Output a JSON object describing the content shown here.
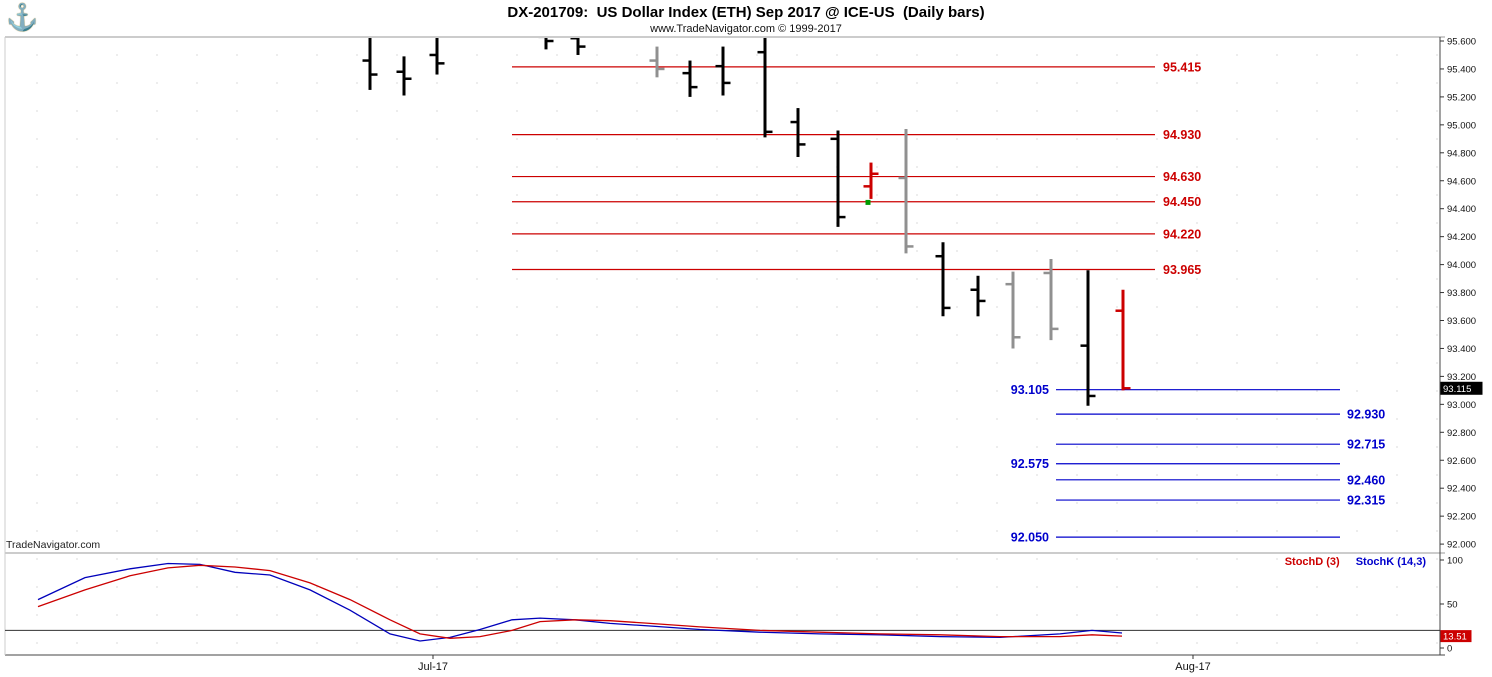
{
  "header": {
    "title": "DX-201709:  US Dollar Index (ETH) Sep 2017 @ ICE-US  (Daily bars)",
    "subtitle": "www.TradeNavigator.com © 1999-2017"
  },
  "icons": {
    "logo": "⚓"
  },
  "watermark": "TradeNavigator.com",
  "legend": {
    "stochd": "StochD (3)",
    "stochk": "StochK (14,3)"
  },
  "badges": {
    "price": "93.115",
    "stoch": "13.51"
  },
  "colors": {
    "resistance": "#cc0000",
    "support": "#0000cc",
    "bar_black": "#000000",
    "bar_gray": "#909090",
    "bar_red": "#cc0000",
    "stoch_k": "#0000bb",
    "stoch_d": "#cc0000",
    "badge_price_bg": "#000000",
    "badge_stoch_bg": "#cc0000",
    "marker_green": "#009900"
  },
  "price_axis": {
    "min": 92.0,
    "max": 95.6,
    "step": 0.2,
    "ticks": [
      "95.600",
      "95.400",
      "95.200",
      "95.000",
      "94.800",
      "94.600",
      "94.400",
      "94.200",
      "94.000",
      "93.800",
      "93.600",
      "93.400",
      "93.200",
      "93.000",
      "92.800",
      "92.600",
      "92.400",
      "92.200",
      "92.000"
    ]
  },
  "stoch_axis": {
    "ticks": [
      {
        "label": "100",
        "value": 100
      },
      {
        "label": "50",
        "value": 50
      },
      {
        "label": "0",
        "value": 0
      }
    ],
    "threshold": 20
  },
  "time_axis": {
    "labels": [
      {
        "label": "Jul-17",
        "x": 433
      },
      {
        "label": "Aug-17",
        "x": 1193
      }
    ]
  },
  "chart_data": {
    "type": "ohlc-bar",
    "title": "DX-201709: US Dollar Index (ETH) Sep 2017 @ ICE-US (Daily bars)",
    "ylim": [
      92.0,
      95.6
    ],
    "grid": "dotted",
    "last_price": 93.115,
    "bars": [
      {
        "x": 370,
        "high": 95.66,
        "low": 95.25,
        "open": 95.46,
        "close": 95.36,
        "color": "black"
      },
      {
        "x": 404,
        "high": 95.49,
        "low": 95.21,
        "open": 95.38,
        "close": 95.33,
        "color": "black"
      },
      {
        "x": 437,
        "high": 95.66,
        "low": 95.36,
        "open": 95.5,
        "close": 95.44,
        "color": "black"
      },
      {
        "x": 546,
        "high": 95.72,
        "low": 95.54,
        "open": 95.63,
        "close": 95.6,
        "color": "black"
      },
      {
        "x": 578,
        "high": 95.7,
        "low": 95.5,
        "open": 95.62,
        "close": 95.56,
        "color": "black"
      },
      {
        "x": 657,
        "high": 95.56,
        "low": 95.34,
        "open": 95.46,
        "close": 95.4,
        "color": "gray"
      },
      {
        "x": 690,
        "high": 95.46,
        "low": 95.2,
        "open": 95.37,
        "close": 95.27,
        "color": "black"
      },
      {
        "x": 723,
        "high": 95.56,
        "low": 95.21,
        "open": 95.42,
        "close": 95.3,
        "color": "black"
      },
      {
        "x": 765,
        "high": 95.64,
        "low": 94.91,
        "open": 95.52,
        "close": 94.95,
        "color": "black"
      },
      {
        "x": 798,
        "high": 95.12,
        "low": 94.77,
        "open": 95.02,
        "close": 94.86,
        "color": "black"
      },
      {
        "x": 838,
        "high": 94.96,
        "low": 94.27,
        "open": 94.9,
        "close": 94.34,
        "color": "black"
      },
      {
        "x": 871,
        "high": 94.73,
        "low": 94.47,
        "open": 94.56,
        "close": 94.65,
        "color": "red"
      },
      {
        "x": 906,
        "high": 94.97,
        "low": 94.08,
        "open": 94.62,
        "close": 94.13,
        "color": "gray"
      },
      {
        "x": 943,
        "high": 94.16,
        "low": 93.63,
        "open": 94.06,
        "close": 93.69,
        "color": "black"
      },
      {
        "x": 978,
        "high": 93.92,
        "low": 93.63,
        "open": 93.82,
        "close": 93.74,
        "color": "black"
      },
      {
        "x": 1013,
        "high": 93.95,
        "low": 93.4,
        "open": 93.86,
        "close": 93.48,
        "color": "gray"
      },
      {
        "x": 1051,
        "high": 94.04,
        "low": 93.46,
        "open": 93.94,
        "close": 93.54,
        "color": "gray"
      },
      {
        "x": 1088,
        "high": 93.96,
        "low": 92.99,
        "open": 93.42,
        "close": 93.06,
        "color": "black"
      },
      {
        "x": 1123,
        "high": 93.82,
        "low": 93.1,
        "open": 93.67,
        "close": 93.115,
        "color": "red"
      }
    ],
    "resistance_levels": [
      {
        "price": 95.415,
        "label": "95.415"
      },
      {
        "price": 94.93,
        "label": "94.930"
      },
      {
        "price": 94.63,
        "label": "94.630"
      },
      {
        "price": 94.45,
        "label": "94.450"
      },
      {
        "price": 94.22,
        "label": "94.220"
      },
      {
        "price": 93.965,
        "label": "93.965"
      }
    ],
    "support_levels": [
      {
        "price": 93.105,
        "label": "93.105",
        "label_side": "left"
      },
      {
        "price": 92.93,
        "label": "92.930",
        "label_side": "right"
      },
      {
        "price": 92.715,
        "label": "92.715",
        "label_side": "right"
      },
      {
        "price": 92.575,
        "label": "92.575",
        "label_side": "left"
      },
      {
        "price": 92.46,
        "label": "92.460",
        "label_side": "right"
      },
      {
        "price": 92.315,
        "label": "92.315",
        "label_side": "right"
      },
      {
        "price": 92.05,
        "label": "92.050",
        "label_side": "left"
      }
    ],
    "marker": {
      "x": 868,
      "price": 94.445,
      "color": "green"
    },
    "stochastic": {
      "k_name": "StochK (14,3)",
      "d_name": "StochD (3)",
      "last_d": 13.51,
      "ylim": [
        0,
        100
      ],
      "k": [
        [
          38,
          55
        ],
        [
          85,
          80
        ],
        [
          130,
          90
        ],
        [
          168,
          96
        ],
        [
          200,
          95
        ],
        [
          235,
          86
        ],
        [
          270,
          83
        ],
        [
          310,
          66
        ],
        [
          350,
          43
        ],
        [
          390,
          16
        ],
        [
          420,
          8
        ],
        [
          450,
          12
        ],
        [
          480,
          21
        ],
        [
          512,
          32
        ],
        [
          540,
          34
        ],
        [
          575,
          32
        ],
        [
          610,
          28
        ],
        [
          650,
          25
        ],
        [
          700,
          21
        ],
        [
          760,
          18
        ],
        [
          820,
          16
        ],
        [
          880,
          15
        ],
        [
          940,
          13
        ],
        [
          1000,
          12
        ],
        [
          1060,
          16
        ],
        [
          1092,
          20
        ],
        [
          1122,
          17
        ]
      ],
      "d": [
        [
          38,
          47
        ],
        [
          85,
          66
        ],
        [
          130,
          82
        ],
        [
          168,
          91
        ],
        [
          200,
          94
        ],
        [
          235,
          92
        ],
        [
          270,
          88
        ],
        [
          310,
          74
        ],
        [
          350,
          55
        ],
        [
          390,
          32
        ],
        [
          420,
          16
        ],
        [
          450,
          11
        ],
        [
          480,
          13
        ],
        [
          512,
          20
        ],
        [
          540,
          30
        ],
        [
          575,
          32
        ],
        [
          610,
          31
        ],
        [
          650,
          28
        ],
        [
          700,
          24
        ],
        [
          760,
          20
        ],
        [
          820,
          18
        ],
        [
          880,
          16
        ],
        [
          940,
          15
        ],
        [
          1000,
          13
        ],
        [
          1060,
          13
        ],
        [
          1092,
          15
        ],
        [
          1122,
          13.51
        ]
      ]
    }
  }
}
